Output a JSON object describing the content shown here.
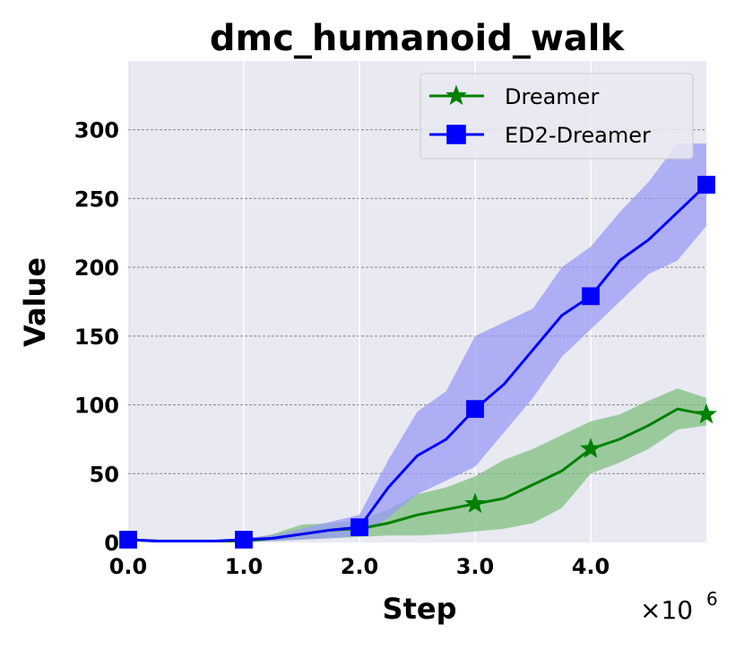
{
  "chart_data": {
    "type": "line",
    "title": "dmc_humanoid_walk",
    "xlabel": "Step",
    "ylabel": "Value",
    "x_multiplier_label": "×10",
    "x_multiplier_exp": "6",
    "xlim": [
      0,
      5000000
    ],
    "ylim": [
      0,
      350
    ],
    "xticks": [
      {
        "value": 0,
        "label": "0.0"
      },
      {
        "value": 1000000,
        "label": "1.0"
      },
      {
        "value": 2000000,
        "label": "2.0"
      },
      {
        "value": 3000000,
        "label": "3.0"
      },
      {
        "value": 4000000,
        "label": "4.0"
      }
    ],
    "yticks": [
      {
        "value": 0,
        "label": "0"
      },
      {
        "value": 50,
        "label": "50"
      },
      {
        "value": 100,
        "label": "100"
      },
      {
        "value": 150,
        "label": "150"
      },
      {
        "value": 200,
        "label": "200"
      },
      {
        "value": 250,
        "label": "250"
      },
      {
        "value": 300,
        "label": "300"
      }
    ],
    "grid": true,
    "legend_position": "top-right",
    "series": [
      {
        "name": "Dreamer",
        "color": "#008000",
        "band_color": "#7fbf7f",
        "marker": "star",
        "x": [
          0,
          250000,
          500000,
          750000,
          1000000,
          1250000,
          1500000,
          1750000,
          2000000,
          2250000,
          2500000,
          2750000,
          3000000,
          3250000,
          3500000,
          3750000,
          4000000,
          4250000,
          4500000,
          4750000,
          5000000
        ],
        "values": [
          2,
          1,
          1,
          1,
          1,
          3,
          6,
          9,
          10,
          14,
          20,
          24,
          28,
          32,
          42,
          52,
          68,
          75,
          85,
          97,
          93
        ],
        "lower": [
          1,
          0,
          0,
          0,
          0,
          1,
          2,
          3,
          4,
          5,
          5,
          6,
          8,
          10,
          14,
          25,
          50,
          58,
          68,
          82,
          85
        ],
        "upper": [
          3,
          2,
          2,
          2,
          2,
          6,
          13,
          14,
          16,
          24,
          35,
          40,
          48,
          60,
          68,
          78,
          88,
          93,
          103,
          112,
          105
        ],
        "marker_x": [
          3000000,
          4000000,
          5000000
        ]
      },
      {
        "name": "ED2-Dreamer",
        "color": "#0000ff",
        "band_color": "#9999f5",
        "marker": "square",
        "x": [
          0,
          250000,
          500000,
          750000,
          1000000,
          1250000,
          1500000,
          1750000,
          2000000,
          2250000,
          2500000,
          2750000,
          3000000,
          3250000,
          3500000,
          3750000,
          4000000,
          4250000,
          4500000,
          4750000,
          5000000
        ],
        "values": [
          2,
          1,
          1,
          1,
          2,
          3,
          6,
          9,
          11,
          40,
          63,
          75,
          97,
          115,
          140,
          165,
          179,
          205,
          220,
          240,
          260
        ],
        "lower": [
          1,
          0,
          0,
          0,
          1,
          1,
          2,
          3,
          5,
          18,
          35,
          45,
          55,
          80,
          105,
          135,
          155,
          175,
          195,
          205,
          230
        ],
        "upper": [
          3,
          2,
          2,
          2,
          3,
          5,
          10,
          15,
          20,
          60,
          95,
          110,
          150,
          160,
          170,
          200,
          215,
          240,
          262,
          290,
          290
        ],
        "marker_x": [
          0,
          1000000,
          2000000,
          3000000,
          4000000,
          5000000
        ]
      }
    ]
  }
}
